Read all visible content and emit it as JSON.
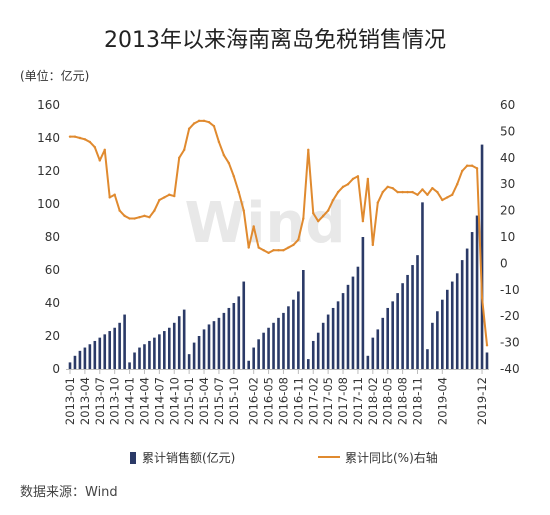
{
  "chart_data": {
    "type": "bar+line",
    "title": "2013年以来海南离岛免税销售情况",
    "unit_label": "(单位：亿元)",
    "source_label": "数据来源：Wind",
    "watermark": "Wind",
    "y_left": {
      "min": 0,
      "max": 160,
      "ticks": [
        0,
        20,
        40,
        60,
        80,
        100,
        120,
        140,
        160
      ]
    },
    "y_right": {
      "min": -40,
      "max": 60,
      "ticks": [
        -40,
        -30,
        -20,
        -10,
        0,
        10,
        20,
        30,
        40,
        50,
        60
      ]
    },
    "x_tick_labels": [
      "2013-01",
      "2013-04",
      "2013-07",
      "2013-10",
      "2014-01",
      "2014-04",
      "2014-07",
      "2014-10",
      "2015-01",
      "2015-04",
      "2015-07",
      "2015-10",
      "2016-02",
      "2016-05",
      "2016-08",
      "2016-11",
      "2017-02",
      "2017-05",
      "2017-08",
      "2017-11",
      "2018-02",
      "2018-05",
      "2018-08",
      "2018-11",
      "2019-04",
      "2019-12"
    ],
    "x": [
      "2013-01",
      "2013-02",
      "2013-03",
      "2013-04",
      "2013-05",
      "2013-06",
      "2013-07",
      "2013-08",
      "2013-09",
      "2013-10",
      "2013-11",
      "2013-12",
      "2014-01",
      "2014-02",
      "2014-03",
      "2014-04",
      "2014-05",
      "2014-06",
      "2014-07",
      "2014-08",
      "2014-09",
      "2014-10",
      "2014-11",
      "2014-12",
      "2015-01",
      "2015-02",
      "2015-03",
      "2015-04",
      "2015-05",
      "2015-06",
      "2015-07",
      "2015-08",
      "2015-09",
      "2015-10",
      "2015-11",
      "2015-12",
      "2016-01",
      "2016-02",
      "2016-03",
      "2016-04",
      "2016-05",
      "2016-06",
      "2016-07",
      "2016-08",
      "2016-09",
      "2016-10",
      "2016-11",
      "2016-12",
      "2017-01",
      "2017-02",
      "2017-03",
      "2017-04",
      "2017-05",
      "2017-06",
      "2017-07",
      "2017-08",
      "2017-09",
      "2017-10",
      "2017-11",
      "2017-12",
      "2018-01",
      "2018-02",
      "2018-03",
      "2018-04",
      "2018-05",
      "2018-06",
      "2018-07",
      "2018-08",
      "2018-09",
      "2018-10",
      "2018-11",
      "2018-12",
      "2019-01",
      "2019-02",
      "2019-03",
      "2019-04",
      "2019-05",
      "2019-06",
      "2019-07",
      "2019-08",
      "2019-09",
      "2019-10",
      "2019-11",
      "2019-12",
      "2020-01"
    ],
    "series": [
      {
        "name": "累计销售额(亿元)",
        "axis": "left",
        "kind": "bar",
        "color": "#2b3a67",
        "values": [
          4,
          8,
          11,
          13,
          15,
          17,
          19,
          21,
          23,
          25,
          28,
          33,
          4,
          10,
          13,
          15,
          17,
          19,
          21,
          23,
          25,
          28,
          32,
          36,
          9,
          16,
          20,
          24,
          27,
          29,
          31,
          34,
          37,
          40,
          44,
          53,
          5,
          13,
          18,
          22,
          25,
          28,
          31,
          34,
          38,
          42,
          47,
          60,
          6,
          17,
          22,
          28,
          33,
          37,
          41,
          46,
          51,
          56,
          62,
          80,
          8,
          19,
          24,
          31,
          37,
          41,
          46,
          52,
          57,
          63,
          69,
          101,
          12,
          28,
          35,
          42,
          48,
          53,
          58,
          66,
          73,
          83,
          93,
          136,
          10
        ]
      },
      {
        "name": "累计同比(%)右轴",
        "axis": "right",
        "kind": "line",
        "color": "#e08a2f",
        "values": [
          48,
          48,
          47.5,
          47,
          46,
          44,
          39,
          43,
          25,
          26,
          20,
          18,
          17,
          17,
          17.5,
          18,
          17.5,
          20,
          24,
          25,
          26,
          25.5,
          40,
          43,
          51,
          53,
          54,
          54,
          53.5,
          52,
          46,
          41,
          38,
          33,
          27,
          20,
          6,
          14,
          6,
          5,
          4,
          5,
          5,
          5,
          6,
          7,
          9,
          17,
          43,
          19,
          16,
          18,
          20,
          24,
          27,
          29,
          30,
          32,
          33,
          16,
          32,
          7,
          23,
          27,
          29,
          28.5,
          27,
          27,
          27,
          27,
          26,
          28,
          26,
          28.5,
          27,
          24,
          25,
          26,
          30,
          35,
          37,
          37,
          36,
          -13,
          -31
        ]
      }
    ],
    "legend": {
      "placement": "bottom",
      "entries": [
        "累计销售额(亿元)",
        "累计同比(%)右轴"
      ]
    }
  }
}
